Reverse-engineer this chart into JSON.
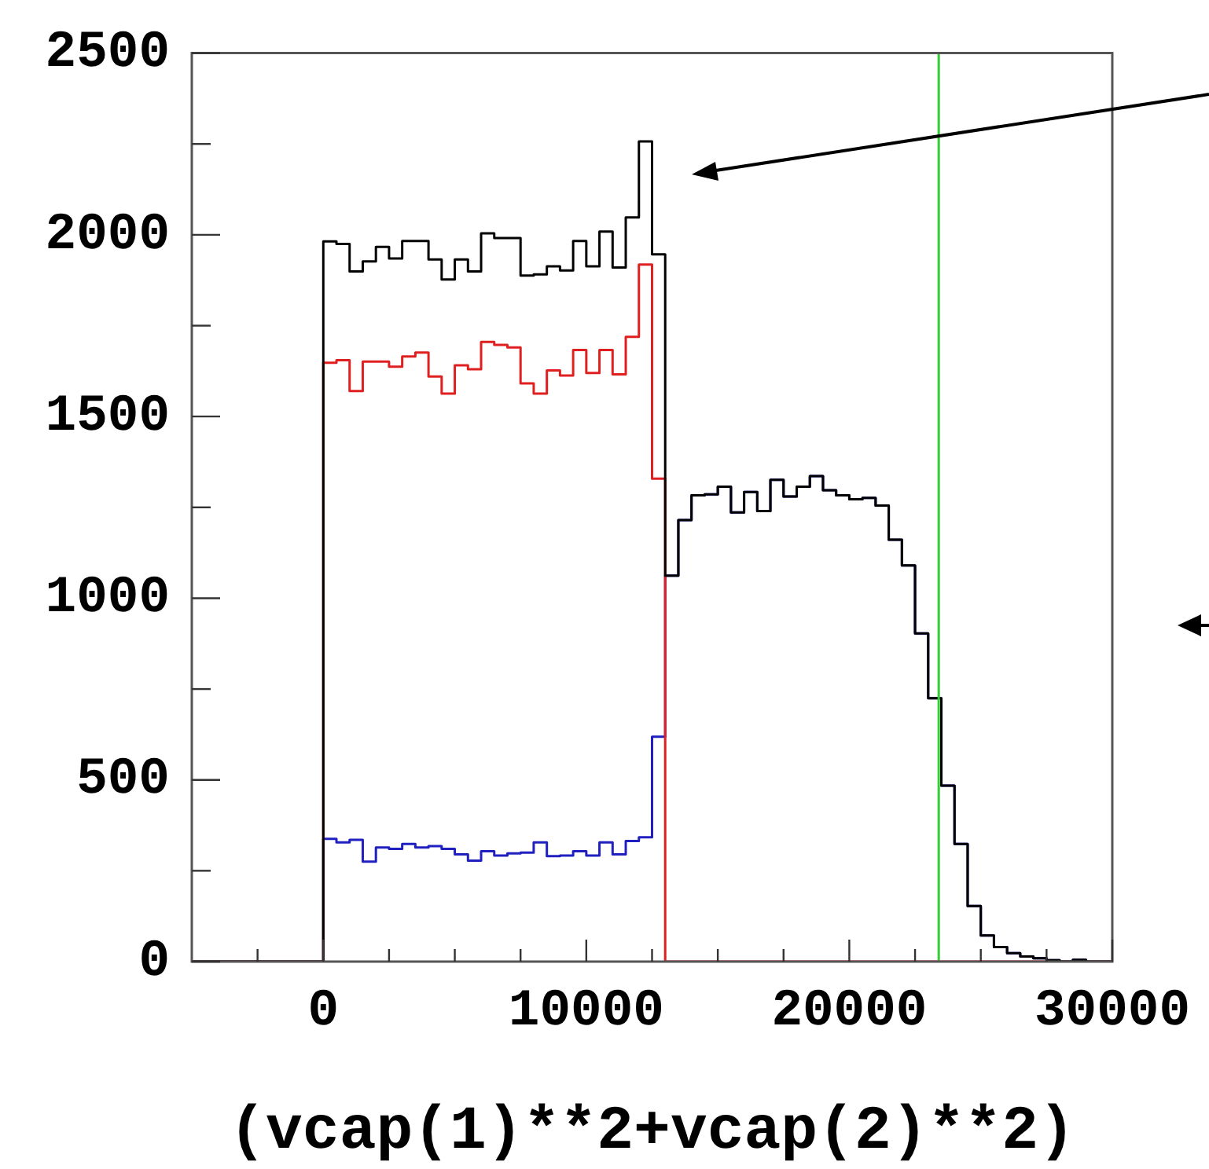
{
  "chart_data": {
    "type": "histogram",
    "xlabel": "(vcap(1)**2+vcap(2)**2)",
    "bins": [
      -5000,
      -4500,
      -4000,
      -3500,
      -3000,
      -2500,
      -2000,
      -1500,
      -1000,
      -500,
      0,
      500,
      1000,
      1500,
      2000,
      2500,
      3000,
      3500,
      4000,
      4500,
      5000,
      5500,
      6000,
      6500,
      7000,
      7500,
      8000,
      8500,
      9000,
      9500,
      10000,
      10500,
      11000,
      11500,
      12000,
      12500,
      13000,
      13500,
      14000,
      14500,
      15000,
      15500,
      16000,
      16500,
      17000,
      17500,
      18000,
      18500,
      19000,
      19500,
      20000,
      20500,
      21000,
      21500,
      22000,
      22500,
      23000,
      23500,
      24000,
      24500,
      25000,
      25500,
      26000,
      26500,
      27000,
      27500,
      28000,
      28500,
      29000,
      29500,
      30000
    ],
    "series": [
      {
        "color": "#000000",
        "values": [
          0,
          0,
          0,
          0,
          0,
          0,
          0,
          0,
          0,
          0,
          1982,
          1975,
          1899,
          1927,
          1967,
          1935,
          1983,
          1983,
          1932,
          1877,
          1932,
          1899,
          2004,
          1991,
          1991,
          1888,
          1891,
          1913,
          1902,
          1983,
          1913,
          2009,
          1910,
          2048,
          2257,
          1946,
          1062,
          1215,
          1283,
          1286,
          1307,
          1236,
          1292,
          1240,
          1326,
          1280,
          1307,
          1336,
          1297,
          1283,
          1272,
          1276,
          1255,
          1161,
          1090,
          903,
          725,
          484,
          324,
          153,
          72,
          40,
          23,
          14,
          9,
          4,
          0,
          5,
          0,
          0
        ]
      },
      {
        "color": "#e02020",
        "values": [
          0,
          0,
          0,
          0,
          0,
          0,
          0,
          0,
          0,
          0,
          1648,
          1655,
          1570,
          1651,
          1651,
          1637,
          1665,
          1676,
          1610,
          1563,
          1641,
          1630,
          1705,
          1697,
          1690,
          1591,
          1563,
          1627,
          1613,
          1683,
          1620,
          1683,
          1616,
          1719,
          1918,
          1329,
          0,
          0,
          0,
          0,
          0,
          0,
          0,
          0,
          0,
          0,
          0,
          0,
          0,
          0,
          0,
          0,
          0,
          0,
          0,
          0,
          0,
          0,
          0,
          0,
          0,
          0,
          0,
          0,
          0,
          0,
          0,
          0,
          0,
          0
        ]
      },
      {
        "color": "#2020c0",
        "values": [
          0,
          0,
          0,
          0,
          0,
          0,
          0,
          0,
          0,
          0,
          338,
          328,
          335,
          275,
          314,
          310,
          324,
          314,
          318,
          310,
          295,
          278,
          304,
          292,
          298,
          300,
          328,
          290,
          292,
          304,
          292,
          328,
          295,
          332,
          342,
          619,
          1062,
          1215,
          1283,
          1286,
          1307,
          1236,
          1292,
          1240,
          1326,
          1280,
          1307,
          1336,
          1297,
          1283,
          1272,
          1276,
          1255,
          1161,
          1090,
          903,
          725,
          484,
          324,
          153,
          72,
          40,
          23,
          14,
          9,
          4,
          0,
          5,
          0,
          0
        ]
      }
    ],
    "xlim": [
      -5000,
      30000
    ],
    "xticks": [
      {
        "value": -2500,
        "label": null
      },
      0,
      {
        "value": 2500,
        "label": null
      },
      {
        "value": 5000,
        "label": null
      },
      {
        "value": 7500,
        "label": null
      },
      10000,
      {
        "value": 12500,
        "label": null
      },
      {
        "value": 15000,
        "label": null
      },
      {
        "value": 17500,
        "label": null
      },
      20000,
      {
        "value": 22500,
        "label": null
      },
      {
        "value": 25000,
        "label": null
      },
      {
        "value": 27500,
        "label": null
      },
      30000
    ],
    "ylim": [
      0,
      2500
    ],
    "yticks": [
      0,
      {
        "value": 250,
        "label": null
      },
      500,
      {
        "value": 750,
        "label": null
      },
      1000,
      {
        "value": 1250,
        "label": null
      },
      1500,
      {
        "value": 1750,
        "label": null
      },
      2000,
      {
        "value": 2250,
        "label": null
      },
      2500
    ],
    "ref_lines": [
      {
        "axis": "x",
        "value": 23400,
        "color": "#33cc33"
      }
    ],
    "grid": false,
    "legend": false
  }
}
